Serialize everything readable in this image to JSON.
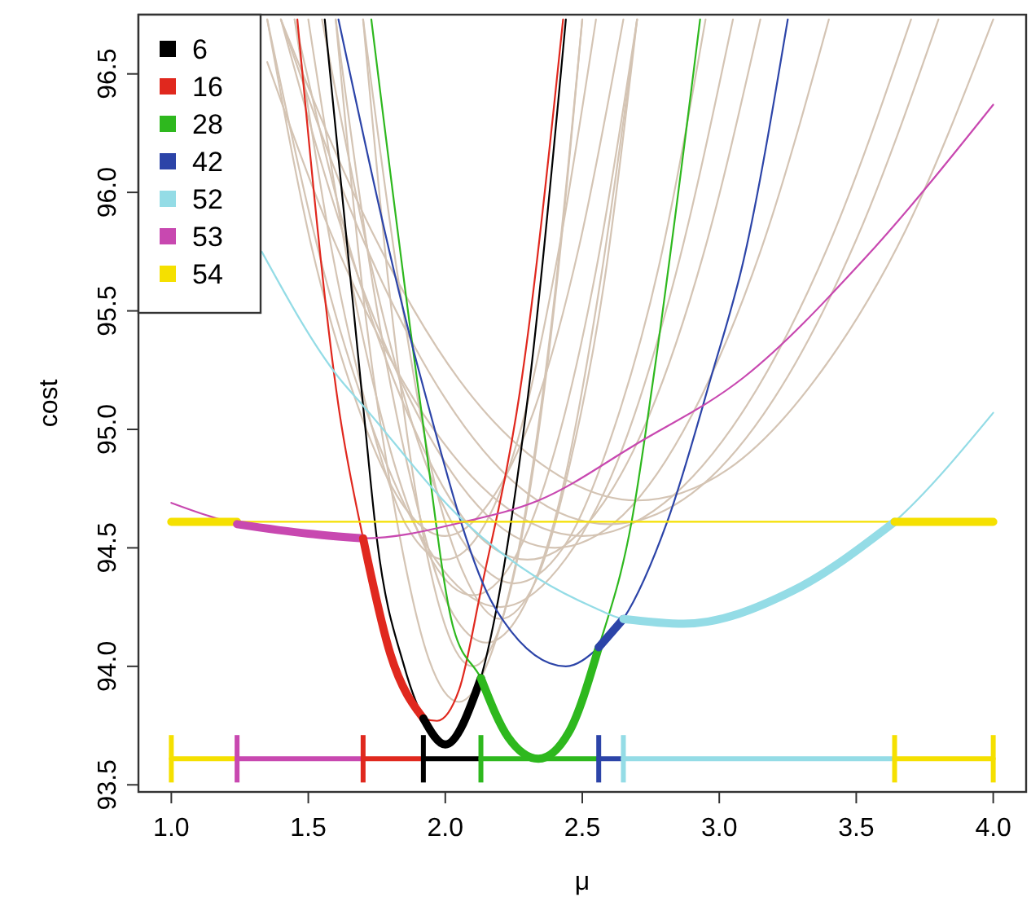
{
  "chart_data": {
    "type": "line",
    "xlabel": "μ",
    "ylabel": "cost",
    "xlim": [
      0.88,
      4.12
    ],
    "ylim": [
      93.47,
      96.75
    ],
    "xticks": [
      {
        "value": 1,
        "label": "1.0"
      },
      {
        "value": 1.5,
        "label": "1.5"
      },
      {
        "value": 2,
        "label": "2.0"
      },
      {
        "value": 2.5,
        "label": "2.5"
      },
      {
        "value": 3,
        "label": "3.0"
      },
      {
        "value": 3.5,
        "label": "3.5"
      },
      {
        "value": 4,
        "label": "4.0"
      }
    ],
    "yticks": [
      93.5,
      {
        "value": 94,
        "label": "94.0"
      },
      94.5,
      {
        "value": 95,
        "label": "95.0"
      },
      95.5,
      {
        "value": 96,
        "label": "96.0"
      },
      96.5
    ],
    "legend": "top left",
    "grid": false,
    "marker": "none",
    "line_style": "solid",
    "series": [
      {
        "color": "#d4c4b4",
        "x": [
          1.6,
          1.71,
          1.83,
          1.94,
          2.05,
          2.16,
          2.28,
          2.39,
          2.5
        ],
        "values": [
          96.73,
          95.47,
          94.57,
          94.03,
          93.85,
          94.03,
          94.57,
          95.47,
          96.73
        ]
      },
      {
        "color": "#d4c4b4",
        "x": [
          1.7,
          1.8,
          1.9,
          2.0,
          2.1,
          2.2,
          2.3,
          2.4,
          2.5
        ],
        "values": [
          96.73,
          95.54,
          94.68,
          94.17,
          94.0,
          94.17,
          94.68,
          95.54,
          96.73
        ]
      },
      {
        "color": "#d4c4b4",
        "x": [
          1.6,
          1.74,
          1.88,
          2.01,
          2.15,
          2.29,
          2.43,
          2.56,
          2.7
        ],
        "values": [
          96.73,
          95.58,
          94.76,
          94.26,
          94.1,
          94.26,
          94.76,
          95.58,
          96.73
        ]
      },
      {
        "color": "#d4c4b4",
        "x": [
          1.7,
          1.83,
          1.95,
          2.08,
          2.2,
          2.33,
          2.45,
          2.58,
          2.7
        ],
        "values": [
          96.73,
          95.62,
          94.83,
          94.36,
          94.2,
          94.36,
          94.83,
          95.62,
          96.73
        ]
      },
      {
        "color": "#d4c4b4",
        "x": [
          1.5,
          1.65,
          1.8,
          1.95,
          2.1,
          2.25,
          2.4,
          2.55,
          2.7
        ],
        "values": [
          96.73,
          95.67,
          94.91,
          94.45,
          94.3,
          94.45,
          94.91,
          95.67,
          96.73
        ]
      },
      {
        "color": "#d4c4b4",
        "x": [
          1.55,
          1.73,
          1.9,
          2.08,
          2.25,
          2.43,
          2.6,
          2.78,
          2.95
        ],
        "values": [
          96.73,
          95.69,
          94.95,
          94.5,
          94.35,
          94.5,
          94.95,
          95.69,
          96.73
        ]
      },
      {
        "color": "#d4c4b4",
        "x": [
          1.45,
          1.59,
          1.73,
          1.86,
          2.0,
          2.14,
          2.28,
          2.41,
          2.55
        ],
        "values": [
          96.73,
          95.73,
          95.02,
          94.59,
          94.45,
          94.59,
          95.02,
          95.73,
          96.73
        ]
      },
      {
        "color": "#d4c4b4",
        "x": [
          1.45,
          1.66,
          1.88,
          2.09,
          2.3,
          2.51,
          2.73,
          2.94,
          3.15
        ],
        "values": [
          96.73,
          95.73,
          95.02,
          94.59,
          94.45,
          94.59,
          95.02,
          95.73,
          96.73
        ]
      },
      {
        "color": "#d4c4b4",
        "x": [
          1.4,
          1.65,
          1.9,
          2.15,
          2.4,
          2.65,
          2.9,
          3.15,
          3.4
        ],
        "values": [
          96.73,
          95.75,
          95.06,
          94.64,
          94.5,
          94.64,
          95.06,
          95.75,
          96.73
        ]
      },
      {
        "color": "#d4c4b4",
        "x": [
          1.35,
          1.6,
          1.9,
          2.2,
          2.5,
          2.8,
          3.1,
          3.4,
          3.7
        ],
        "values": [
          96.55,
          95.78,
          95.1,
          94.69,
          94.55,
          94.69,
          95.1,
          95.78,
          96.73
        ]
      },
      {
        "color": "#d4c4b4",
        "x": [
          1.4,
          1.7,
          2.0,
          2.3,
          2.6,
          2.9,
          3.2,
          3.5,
          3.8
        ],
        "values": [
          96.73,
          95.8,
          95.13,
          94.73,
          94.6,
          94.73,
          95.13,
          95.8,
          96.73
        ]
      },
      {
        "color": "#d4c4b4",
        "x": [
          1.35,
          1.56,
          1.78,
          1.99,
          2.2,
          2.41,
          2.63,
          2.84,
          3.05
        ],
        "values": [
          96.73,
          95.65,
          94.87,
          94.41,
          94.25,
          94.41,
          94.87,
          95.65,
          96.73
        ]
      },
      {
        "color": "#d4c4b4",
        "x": [
          1.35,
          1.51,
          1.68,
          1.84,
          2.0,
          2.16,
          2.33,
          2.49,
          2.65
        ],
        "values": [
          96.73,
          95.78,
          95.1,
          94.69,
          94.55,
          94.69,
          95.1,
          95.78,
          96.73
        ]
      },
      {
        "color": "#d4c4b4",
        "x": [
          1.4,
          1.73,
          2.05,
          2.38,
          2.7,
          3.03,
          3.35,
          3.68,
          4.0
        ],
        "values": [
          96.73,
          95.84,
          95.21,
          94.83,
          94.7,
          94.83,
          95.21,
          95.84,
          96.73
        ]
      },
      {
        "name": "6",
        "color": "#000000",
        "x": [
          1.56,
          1.7,
          1.75,
          1.85,
          1.92,
          2.0,
          2.13,
          2.31,
          2.44
        ],
        "values": [
          96.73,
          95.1,
          94.54,
          94.0,
          93.78,
          93.67,
          93.95,
          95.22,
          96.73
        ]
      },
      {
        "name": "16",
        "color": "#e0281e",
        "x": [
          1.46,
          1.61,
          1.7,
          1.8,
          1.92,
          1.97,
          2.05,
          2.13,
          2.28,
          2.43
        ],
        "values": [
          96.73,
          95.1,
          94.54,
          94.05,
          93.78,
          93.77,
          93.9,
          94.32,
          95.22,
          96.73
        ]
      },
      {
        "name": "28",
        "color": "#2eb81e",
        "x": [
          1.73,
          1.91,
          2.03,
          2.13,
          2.23,
          2.34,
          2.45,
          2.56,
          2.68,
          2.76,
          2.93
        ],
        "values": [
          96.73,
          95.1,
          94.16,
          93.95,
          93.7,
          93.61,
          93.72,
          94.08,
          94.61,
          95.22,
          96.73
        ]
      },
      {
        "name": "42",
        "color": "#2c44a8",
        "x": [
          1.61,
          1.91,
          2.18,
          2.44,
          2.56,
          2.65,
          2.81,
          2.97,
          3.09,
          3.25
        ],
        "values": [
          96.73,
          95.22,
          94.25,
          94.0,
          94.08,
          94.2,
          94.61,
          95.22,
          95.72,
          96.73
        ]
      },
      {
        "name": "52",
        "color": "#94dce6",
        "x": [
          1.33,
          1.61,
          1.7,
          2.07,
          2.34,
          2.54,
          2.65,
          2.87,
          3.27,
          3.64,
          4.0
        ],
        "values": [
          95.75,
          95.22,
          95.1,
          94.61,
          94.37,
          94.25,
          94.2,
          94.18,
          94.32,
          94.61,
          95.07
        ]
      },
      {
        "name": "53",
        "color": "#c848b0",
        "x": [
          1.0,
          1.24,
          1.5,
          1.7,
          2.07,
          2.34,
          2.7,
          3.09,
          3.53,
          4.0
        ],
        "values": [
          94.69,
          94.6,
          94.56,
          94.54,
          94.61,
          94.7,
          94.94,
          95.22,
          95.72,
          96.37
        ]
      },
      {
        "name": "54",
        "color": "#f5e000",
        "x": [
          1.0,
          4.0
        ],
        "values": [
          94.61,
          94.61
        ]
      },
      {
        "color": "#f5e000",
        "x": [
          1.0,
          1.24
        ],
        "values": [
          94.61,
          94.61
        ]
      },
      {
        "color": "#c848b0",
        "x": [
          1.24,
          1.5,
          1.7
        ],
        "values": [
          94.6,
          94.56,
          94.54
        ]
      },
      {
        "color": "#e0281e",
        "x": [
          1.7,
          1.8,
          1.92
        ],
        "values": [
          94.54,
          94.05,
          93.78
        ]
      },
      {
        "color": "#000000",
        "x": [
          1.92,
          2.0,
          2.13
        ],
        "values": [
          93.78,
          93.67,
          93.95
        ]
      },
      {
        "color": "#2eb81e",
        "x": [
          2.13,
          2.23,
          2.34,
          2.45,
          2.56
        ],
        "values": [
          93.95,
          93.7,
          93.61,
          93.72,
          94.08
        ]
      },
      {
        "color": "#2c44a8",
        "x": [
          2.56,
          2.65
        ],
        "values": [
          94.08,
          94.2
        ]
      },
      {
        "color": "#94dce6",
        "x": [
          2.65,
          2.87,
          3.27,
          3.64
        ],
        "values": [
          94.2,
          94.18,
          94.32,
          94.61
        ]
      },
      {
        "color": "#f5e000",
        "x": [
          3.64,
          4.0
        ],
        "values": [
          94.61,
          94.61
        ]
      },
      {
        "color": "#f5e000",
        "x": [
          1.0,
          1.24
        ],
        "values": [
          93.61,
          93.61
        ],
        "errors": [
          0.1,
          null
        ]
      },
      {
        "color": "#c848b0",
        "x": [
          1.24,
          1.7
        ],
        "values": [
          93.61,
          93.61
        ],
        "errors": [
          0.1,
          null
        ]
      },
      {
        "color": "#e0281e",
        "x": [
          1.7,
          1.92
        ],
        "values": [
          93.61,
          93.61
        ],
        "errors": [
          0.1,
          null
        ]
      },
      {
        "color": "#000000",
        "x": [
          1.92,
          2.13
        ],
        "values": [
          93.61,
          93.61
        ],
        "errors": [
          0.1,
          null
        ]
      },
      {
        "color": "#2eb81e",
        "x": [
          2.13,
          2.56
        ],
        "values": [
          93.61,
          93.61
        ],
        "errors": [
          0.1,
          null
        ]
      },
      {
        "color": "#2c44a8",
        "x": [
          2.56,
          2.65
        ],
        "values": [
          93.61,
          93.61
        ],
        "errors": [
          0.1,
          null
        ]
      },
      {
        "color": "#94dce6",
        "x": [
          2.65,
          3.64
        ],
        "values": [
          93.61,
          93.61
        ],
        "errors": [
          0.1,
          null
        ]
      },
      {
        "color": "#f5e000",
        "x": [
          3.64,
          4.0
        ],
        "values": [
          93.61,
          93.61
        ],
        "errors": [
          0.1,
          0.1
        ]
      }
    ]
  }
}
